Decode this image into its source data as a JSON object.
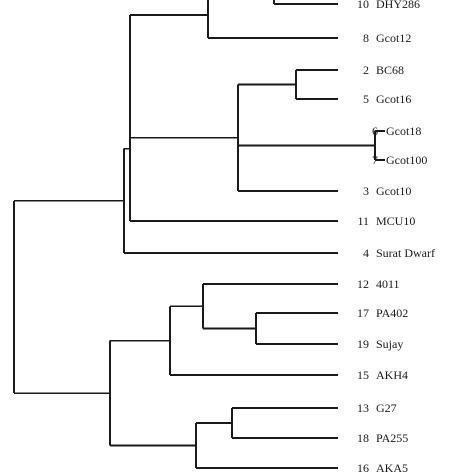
{
  "leaves": [
    {
      "id": "l10",
      "number": "10",
      "name": "DHY286"
    },
    {
      "id": "l8",
      "number": "8",
      "name": "Gcot12"
    },
    {
      "id": "l2",
      "number": "2",
      "name": "BC68"
    },
    {
      "id": "l5",
      "number": "5",
      "name": "Gcot16"
    },
    {
      "id": "l6",
      "number": "6",
      "name": "Gcot18"
    },
    {
      "id": "l7",
      "number": "7",
      "name": "Gcot100"
    },
    {
      "id": "l3",
      "number": "3",
      "name": "Gcot10"
    },
    {
      "id": "l11",
      "number": "11",
      "name": "MCU10"
    },
    {
      "id": "l4",
      "number": "4",
      "name": "Surat Dwarf"
    },
    {
      "id": "l12",
      "number": "12",
      "name": "4011"
    },
    {
      "id": "l17",
      "number": "17",
      "name": "PA402"
    },
    {
      "id": "l19",
      "number": "19",
      "name": "Sujay"
    },
    {
      "id": "l15",
      "number": "15",
      "name": "AKH4"
    },
    {
      "id": "l13",
      "number": "13",
      "name": "G27"
    },
    {
      "id": "l18",
      "number": "18",
      "name": "PA255"
    },
    {
      "id": "l16",
      "number": "16",
      "name": "AKA5"
    }
  ]
}
